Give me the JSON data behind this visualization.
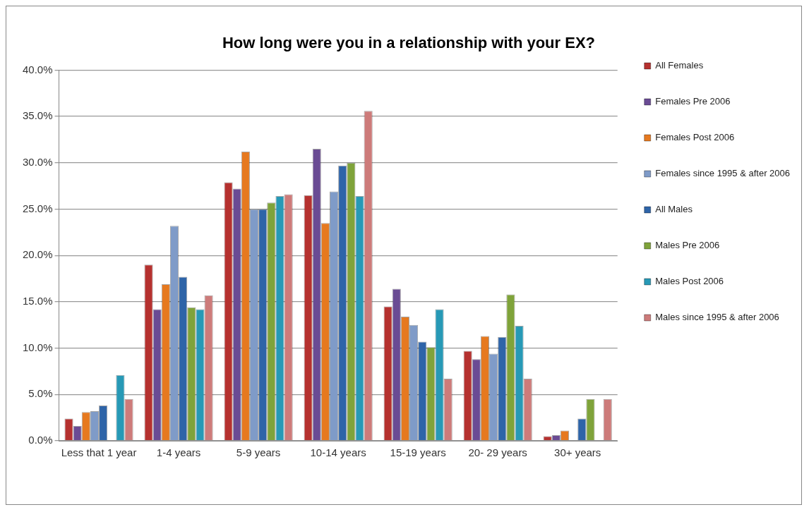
{
  "chart_data": {
    "type": "bar",
    "title": "How long were you in a relationship with your EX?",
    "categories": [
      "Less that 1 year",
      "1-4 years",
      "5-9 years",
      "10-14 years",
      "15-19 years",
      "20- 29 years",
      "30+ years"
    ],
    "series": [
      {
        "name": "All Females",
        "color": "#b5312f",
        "values": [
          2.4,
          19.0,
          27.9,
          26.5,
          14.5,
          9.7,
          0.5
        ]
      },
      {
        "name": "Females Pre 2006",
        "color": "#6a4b94",
        "values": [
          1.6,
          14.2,
          27.2,
          31.5,
          16.4,
          8.8,
          0.6
        ]
      },
      {
        "name": "Females Post 2006",
        "color": "#e6791f",
        "values": [
          3.1,
          16.9,
          31.2,
          23.5,
          13.4,
          11.3,
          1.1
        ]
      },
      {
        "name": "Females since 1995 & after 2006",
        "color": "#7f9bc8",
        "values": [
          3.2,
          23.2,
          25.0,
          26.9,
          12.5,
          9.4,
          0
        ]
      },
      {
        "name": "All Males",
        "color": "#2e64a8",
        "values": [
          3.8,
          17.7,
          25.0,
          29.7,
          10.7,
          11.2,
          2.4
        ]
      },
      {
        "name": "Males Pre 2006",
        "color": "#7fa33a",
        "values": [
          0,
          14.4,
          25.7,
          30.0,
          10.1,
          15.8,
          4.5
        ]
      },
      {
        "name": "Males Post 2006",
        "color": "#2799b6",
        "values": [
          7.1,
          14.2,
          26.4,
          26.4,
          14.2,
          12.4,
          0
        ]
      },
      {
        "name": "Males since 1995 & after 2006",
        "color": "#cd7b7a",
        "values": [
          4.5,
          15.7,
          26.6,
          35.6,
          6.7,
          6.7,
          4.5
        ]
      }
    ],
    "ylim": [
      0,
      40
    ],
    "yticks": [
      {
        "value": 0,
        "label": "0.0%"
      },
      {
        "value": 5,
        "label": "5.0%"
      },
      {
        "value": 10,
        "label": "10.0%"
      },
      {
        "value": 15,
        "label": "15.0%"
      },
      {
        "value": 20,
        "label": "20.0%"
      },
      {
        "value": 25,
        "label": "25.0%"
      },
      {
        "value": 30,
        "label": "30.0%"
      },
      {
        "value": 35,
        "label": "35.0%"
      },
      {
        "value": 40,
        "label": "40.0%"
      }
    ],
    "grid": "y",
    "legend": "right"
  }
}
